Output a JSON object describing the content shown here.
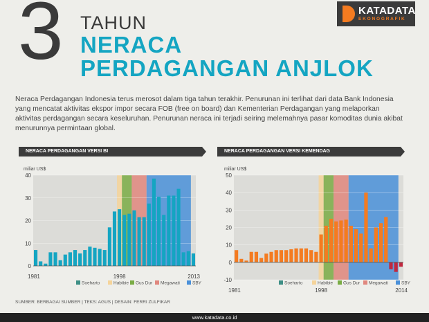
{
  "logo": {
    "main": "KATADATA",
    "sub": "EKONOGRAFIK"
  },
  "title": {
    "number": "3",
    "line1": "TAHUN",
    "line2": "NERACA",
    "line3": "PERDAGANGAN ANJLOK"
  },
  "intro": "Neraca Perdagangan Indonesia terus merosot dalam tiga tahun terakhir. Penurunan ini terlihat dari data Bank Indonesia yang mencatat aktivitas ekspor impor secara FOB (free on board) dan Kementerian Perdagangan yang melaporkan aktivitas perdagangan secara keseluruhan. Penurunan neraca ini terjadi seiring melemahnya pasar komoditas dunia akibat menurunnya permintaan global.",
  "colors": {
    "accent": "#14a5c2",
    "orange": "#f47b20",
    "negative": "#c0283e",
    "soeharto": "#3e8f86",
    "habibie": "#f5d49a",
    "gusdur": "#7aac45",
    "megawati": "#e0877e",
    "sby": "#4a90d9"
  },
  "legend": [
    "Soeharto",
    "Habibie",
    "Gus Dur",
    "Megawati",
    "SBY"
  ],
  "chart_data": [
    {
      "type": "bar",
      "title": "NERACA PERDAGANGAN VERSI BI",
      "ylabel": "miliar US$",
      "ylim": [
        0,
        40
      ],
      "yticks": [
        0,
        10,
        20,
        30,
        40
      ],
      "x_start": 1981,
      "x_labels": [
        "1981",
        "1998",
        "2013"
      ],
      "bar_color": "#14a5c2",
      "values": [
        7,
        2,
        1,
        6,
        6,
        2.5,
        5,
        6,
        7,
        5.5,
        7,
        8.5,
        8,
        7.5,
        7,
        17,
        24,
        25,
        22.5,
        23,
        24.5,
        21.5,
        21.5,
        27.5,
        38.5,
        30.5,
        22.5,
        31,
        31,
        34,
        6,
        6.5,
        5.5
      ],
      "eras": [
        {
          "name": "Habibie",
          "from": 1998,
          "to": 1999,
          "color": "#f5d49a"
        },
        {
          "name": "Gus Dur",
          "from": 1999,
          "to": 2001,
          "color": "#7aac45"
        },
        {
          "name": "Megawati",
          "from": 2001,
          "to": 2004,
          "color": "#e0877e"
        },
        {
          "name": "SBY",
          "from": 2004,
          "to": 2013,
          "color": "#4a90d9"
        }
      ]
    },
    {
      "type": "bar",
      "title": "NERACA PERDAGANGAN VERSI KEMENDAG",
      "ylabel": "miliar US$",
      "ylim": [
        -10,
        50
      ],
      "yticks": [
        -10,
        0,
        10,
        20,
        30,
        40,
        50
      ],
      "x_start": 1981,
      "x_labels": [
        "1981",
        "1998",
        "2014"
      ],
      "bar_color": "#f47b20",
      "negative_color": "#c0283e",
      "values": [
        7,
        2,
        1,
        6,
        6,
        2.5,
        5,
        6,
        7,
        7,
        7,
        7.5,
        8,
        8,
        8,
        7,
        6,
        16,
        21,
        25,
        23.5,
        24,
        24.5,
        21,
        19,
        16.5,
        40,
        8,
        20,
        22.5,
        26,
        -4,
        -5.5,
        -2.5
      ],
      "eras": [
        {
          "name": "Habibie",
          "from": 1998,
          "to": 1999,
          "color": "#f5d49a"
        },
        {
          "name": "Gus Dur",
          "from": 1999,
          "to": 2001,
          "color": "#7aac45"
        },
        {
          "name": "Megawati",
          "from": 2001,
          "to": 2004,
          "color": "#e0877e"
        },
        {
          "name": "SBY",
          "from": 2004,
          "to": 2014,
          "color": "#4a90d9"
        }
      ]
    }
  ],
  "footer": {
    "credit": "SUMBER: BERBAGAI SUMBER | TEKS: AGUS | DESAIN: FERRI ZULFIKAR",
    "url": "www.katadata.co.id"
  }
}
